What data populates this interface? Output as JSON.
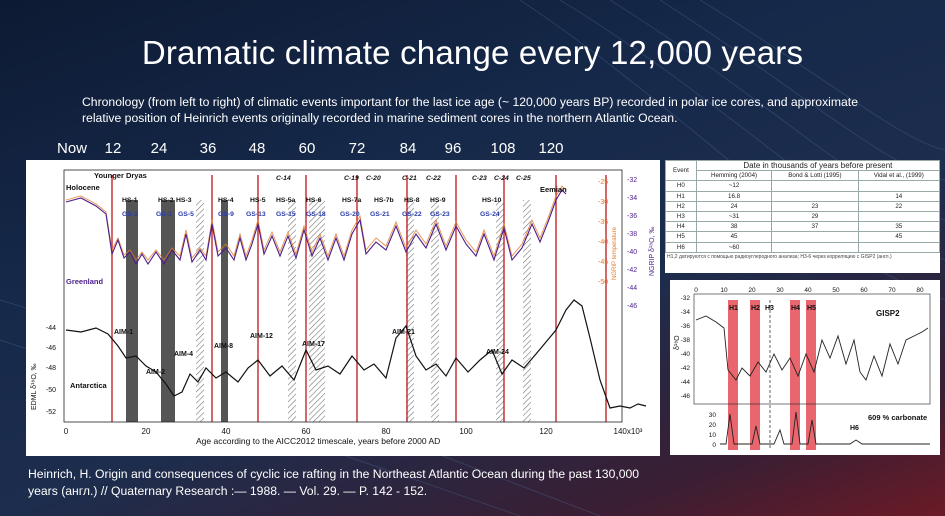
{
  "slide": {
    "title": "Dramatic climate change every 12,000 years",
    "subtitle": "Chronology (from left to right) of climatic events important for the last ice age (~ 120,000 years BP) recorded in polar ice cores, and approximate relative position of Heinrich events originally recorded in marine sediment cores in the northern Atlantic Ocean.",
    "reference_line1": "Heinrich, H. Origin and consequences of cyclic ice rafting in the Northeast Atlantic Ocean during the past 130,000",
    "reference_line2": "years (англ.) // Quaternary Research :— 1988. — Vol. 29. — P. 142 - 152.",
    "age_ticks": [
      "Now",
      "12",
      "24",
      "36",
      "48",
      "60",
      "72",
      "84",
      "96",
      "108",
      "120"
    ]
  },
  "main_chart": {
    "x_axis_label": "Age according to the AICC2012 timescale, years before 2000 AD",
    "x_ticks": [
      "0",
      "20",
      "40",
      "60",
      "80",
      "100",
      "120",
      "140x10³"
    ],
    "left_axis_label": "EDML δ¹⁸O, ‰",
    "left_ticks": [
      "-44",
      "-46",
      "-48",
      "-50",
      "-52"
    ],
    "right_axis_label": "NGRIP δ¹⁸O, ‰",
    "right_ticks": [
      "-32",
      "-34",
      "-36",
      "-38",
      "-40",
      "-42",
      "-44",
      "-46"
    ],
    "mid_axis_label": "NGRIP temperature",
    "mid_ticks": [
      "-25",
      "-30",
      "-35",
      "-40",
      "-45",
      "-50"
    ],
    "region_labels": {
      "holocene": "Holocene",
      "younger_dryas": "Younger Dryas",
      "greenland": "Greenland",
      "antarctica": "Antarctica",
      "eemian": "Eemian"
    },
    "hs_labels": [
      "HS-1",
      "HS-2",
      "HS-3",
      "HS-4",
      "HS-5",
      "HS-5a",
      "HS-6",
      "HS-7a",
      "HS-7b",
      "HS-8",
      "HS-9",
      "HS-10"
    ],
    "gs_labels": [
      "GS-2",
      "GS-3",
      "GS-5",
      "GS-9",
      "GS-13",
      "GS-15",
      "GS-18",
      "GS-20",
      "GS-21",
      "GS-22",
      "GS-23",
      "GS-24"
    ],
    "c_labels": [
      "C-14",
      "C-19",
      "C-20",
      "C-21",
      "C-22",
      "C-23",
      "C-24",
      "C-25"
    ],
    "aim_labels": [
      "AIM-1",
      "AIM-2",
      "AIM-4",
      "AIM-8",
      "AIM-12",
      "AIM-17",
      "AIM-21",
      "AIM-24"
    ],
    "colors": {
      "greenland": "#4b1e8a",
      "temperature": "#e07a2a",
      "antarctica": "#111111",
      "heinrich_band": "#555555",
      "red_line": "#c0151b"
    }
  },
  "table": {
    "caption": "Date in thousands of years before present",
    "columns": [
      "Event",
      "Hemming (2004)",
      "Bond & Lotti (1995)",
      "Vidal et al., (1999)"
    ],
    "rows": [
      [
        "H0",
        "~12",
        "",
        ""
      ],
      [
        "H1",
        "16.8",
        "",
        "14"
      ],
      [
        "H2",
        "24",
        "23",
        "22"
      ],
      [
        "H3",
        "~31",
        "29",
        ""
      ],
      [
        "H4",
        "38",
        "37",
        "35"
      ],
      [
        "H5",
        "45",
        "",
        "45"
      ],
      [
        "H6",
        "~60",
        "",
        ""
      ]
    ],
    "footnote": "H1,2 датируются с помощью радиоуглеродного анализа; H3-6 через корреляцию с GISP2 (англ.)"
  },
  "gisp_chart": {
    "series_label": "GISP2",
    "carbonate_label": "609 % carbonate",
    "h6_label": "H6",
    "top_ticks": [
      "0",
      "10",
      "20",
      "30",
      "40",
      "50",
      "60",
      "70",
      "80"
    ],
    "y_ticks": [
      "-32",
      "-34",
      "-36",
      "-38",
      "-40",
      "-42",
      "-44",
      "-46"
    ],
    "y_label": "δ¹⁸O",
    "lower_ticks": [
      "30",
      "20",
      "10",
      "0"
    ],
    "h_labels": [
      "H1",
      "H2",
      "H3",
      "H4",
      "H5"
    ],
    "colors": {
      "band": "#e64b55",
      "curve": "#222222"
    }
  }
}
